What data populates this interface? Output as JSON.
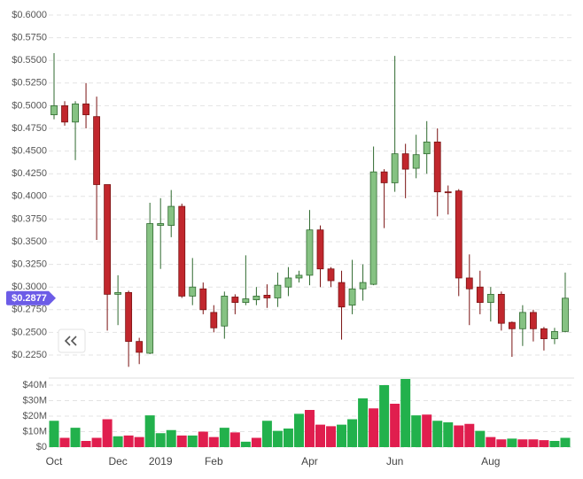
{
  "chart_data": [
    {
      "type": "candlestick",
      "categories": [
        "Oct",
        null,
        null,
        null,
        null,
        null,
        "Dec",
        null,
        null,
        null,
        "2019",
        null,
        null,
        null,
        null,
        "Feb",
        null,
        null,
        null,
        null,
        null,
        null,
        null,
        null,
        "Apr",
        null,
        null,
        null,
        null,
        null,
        null,
        null,
        "Jun",
        null,
        null,
        null,
        null,
        null,
        null,
        null,
        null,
        "Aug",
        null,
        null,
        null,
        null,
        null,
        null,
        null
      ],
      "open": [
        0.49,
        0.5,
        0.482,
        0.502,
        0.488,
        0.413,
        0.292,
        0.294,
        0.24,
        0.227,
        0.368,
        0.368,
        0.389,
        0.29,
        0.298,
        0.272,
        0.257,
        0.289,
        0.283,
        0.286,
        0.291,
        0.288,
        0.3,
        0.31,
        0.313,
        0.363,
        0.32,
        0.305,
        0.28,
        0.298,
        0.303,
        0.427,
        0.415,
        0.447,
        0.431,
        0.447,
        0.46,
        0.405,
        0.406,
        0.31,
        0.3,
        0.283,
        0.292,
        0.261,
        0.254,
        0.272,
        0.254,
        0.243,
        0.251
      ],
      "high": [
        0.558,
        0.505,
        0.505,
        0.525,
        0.51,
        0.413,
        0.313,
        0.296,
        0.244,
        0.393,
        0.398,
        0.407,
        0.392,
        0.332,
        0.305,
        0.28,
        0.295,
        0.292,
        0.335,
        0.3,
        0.303,
        0.316,
        0.322,
        0.318,
        0.385,
        0.368,
        0.322,
        0.318,
        0.33,
        0.325,
        0.455,
        0.43,
        0.555,
        0.458,
        0.468,
        0.483,
        0.475,
        0.412,
        0.408,
        0.336,
        0.318,
        0.3,
        0.295,
        0.262,
        0.28,
        0.275,
        0.256,
        0.255,
        0.316
      ],
      "low": [
        0.485,
        0.478,
        0.44,
        0.475,
        0.352,
        0.252,
        0.258,
        0.212,
        0.215,
        0.226,
        0.32,
        0.355,
        0.288,
        0.28,
        0.27,
        0.25,
        0.243,
        0.27,
        0.28,
        0.28,
        0.277,
        0.278,
        0.29,
        0.305,
        0.302,
        0.3,
        0.3,
        0.242,
        0.27,
        0.285,
        0.302,
        0.365,
        0.405,
        0.398,
        0.42,
        0.425,
        0.378,
        0.38,
        0.29,
        0.258,
        0.27,
        0.262,
        0.252,
        0.223,
        0.235,
        0.24,
        0.23,
        0.237,
        0.25
      ],
      "close": [
        0.5,
        0.482,
        0.502,
        0.49,
        0.413,
        0.292,
        0.294,
        0.24,
        0.228,
        0.37,
        0.37,
        0.389,
        0.29,
        0.3,
        0.275,
        0.255,
        0.29,
        0.283,
        0.287,
        0.29,
        0.288,
        0.302,
        0.31,
        0.313,
        0.363,
        0.32,
        0.307,
        0.278,
        0.298,
        0.305,
        0.427,
        0.415,
        0.447,
        0.43,
        0.446,
        0.46,
        0.405,
        0.404,
        0.31,
        0.298,
        0.283,
        0.292,
        0.26,
        0.254,
        0.272,
        0.254,
        0.243,
        0.251,
        0.2877
      ],
      "up_color": "#86c283",
      "down_color": "#c1272d",
      "ylim": [
        0.205,
        0.6
      ],
      "yticks": [
        {
          "value": 0.225,
          "label": "$0.2250"
        },
        {
          "value": 0.25,
          "label": "$0.2500"
        },
        {
          "value": 0.275,
          "label": "$0.2750"
        },
        {
          "value": 0.3,
          "label": "$0.3000"
        },
        {
          "value": 0.325,
          "label": "$0.3250"
        },
        {
          "value": 0.35,
          "label": "$0.3500"
        },
        {
          "value": 0.375,
          "label": "$0.3750"
        },
        {
          "value": 0.4,
          "label": "$0.4000"
        },
        {
          "value": 0.425,
          "label": "$0.4250"
        },
        {
          "value": 0.45,
          "label": "$0.4500"
        },
        {
          "value": 0.475,
          "label": "$0.4750"
        },
        {
          "value": 0.5,
          "label": "$0.5000"
        },
        {
          "value": 0.525,
          "label": "$0.5250"
        },
        {
          "value": 0.55,
          "label": "$0.5500"
        },
        {
          "value": 0.575,
          "label": "$0.5750"
        },
        {
          "value": 0.6,
          "label": "$0.6000"
        }
      ],
      "grid": true,
      "last_price": {
        "value": 0.2877,
        "label": "$0.2877"
      },
      "last_price_color": "#6c5ce7"
    },
    {
      "type": "bar",
      "values": [
        17000000,
        6000000,
        12500000,
        4000000,
        6000000,
        18000000,
        7000000,
        7500000,
        6500000,
        20500000,
        9000000,
        11000000,
        7500000,
        7500000,
        10000000,
        6500000,
        12500000,
        9500000,
        3500000,
        6000000,
        17000000,
        10500000,
        12000000,
        21500000,
        24000000,
        14500000,
        13500000,
        14500000,
        18000000,
        31500000,
        25000000,
        40000000,
        28000000,
        44000000,
        20500000,
        21000000,
        17000000,
        16000000,
        14000000,
        15000000,
        10500000,
        6500000,
        5000000,
        5500000,
        5000000,
        5000000,
        4500000,
        4000000,
        6000000
      ],
      "colors": [
        "#22b14c",
        "#e01e4e",
        "#22b14c",
        "#e01e4e",
        "#e01e4e",
        "#e01e4e",
        "#22b14c",
        "#e01e4e",
        "#e01e4e",
        "#22b14c",
        "#22b14c",
        "#22b14c",
        "#e01e4e",
        "#22b14c",
        "#e01e4e",
        "#e01e4e",
        "#22b14c",
        "#e01e4e",
        "#22b14c",
        "#e01e4e",
        "#22b14c",
        "#22b14c",
        "#22b14c",
        "#22b14c",
        "#e01e4e",
        "#e01e4e",
        "#e01e4e",
        "#22b14c",
        "#22b14c",
        "#22b14c",
        "#e01e4e",
        "#22b14c",
        "#e01e4e",
        "#22b14c",
        "#22b14c",
        "#e01e4e",
        "#22b14c",
        "#22b14c",
        "#e01e4e",
        "#e01e4e",
        "#22b14c",
        "#e01e4e",
        "#e01e4e",
        "#22b14c",
        "#e01e4e",
        "#e01e4e",
        "#e01e4e",
        "#22b14c",
        "#22b14c"
      ],
      "ylim": [
        0,
        45000000
      ],
      "yticks": [
        {
          "value": 0,
          "label": "$0"
        },
        {
          "value": 10000000,
          "label": "$10M"
        },
        {
          "value": 20000000,
          "label": "$20M"
        },
        {
          "value": 30000000,
          "label": "$30M"
        },
        {
          "value": 40000000,
          "label": "$40M"
        }
      ]
    }
  ]
}
